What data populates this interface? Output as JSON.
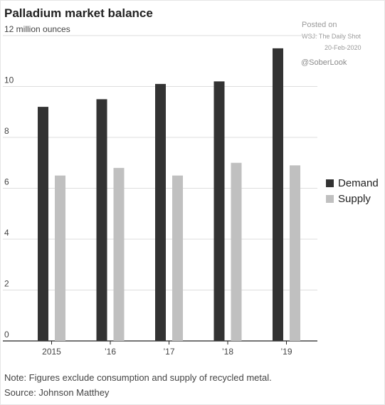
{
  "title": "Palladium market balance",
  "watermark": {
    "posted": "Posted on",
    "source_line": "WSJ: The Daily Shot",
    "date": "20-Feb-2020",
    "handle": "@SoberLook"
  },
  "note": "Note: Figures exclude consumption and supply of recycled metal.",
  "source": "Source: Johnson Matthey",
  "colors": {
    "demand": "#333333",
    "supply": "#c0c0c0",
    "grid": "#dddddd",
    "axis": "#222222"
  },
  "chart_data": {
    "type": "bar",
    "categories": [
      "2015",
      "’16",
      "’17",
      "’18",
      "’19"
    ],
    "series": [
      {
        "name": "Demand",
        "values": [
          9.2,
          9.5,
          10.1,
          10.2,
          11.5
        ]
      },
      {
        "name": "Supply",
        "values": [
          6.5,
          6.8,
          6.5,
          7.0,
          6.9
        ]
      }
    ],
    "ylabel": "12 million ounces",
    "yticks": [
      "0",
      "2",
      "4",
      "6",
      "8",
      "10"
    ],
    "ylim": [
      0,
      12
    ],
    "grid": true,
    "legend_position": "right"
  }
}
